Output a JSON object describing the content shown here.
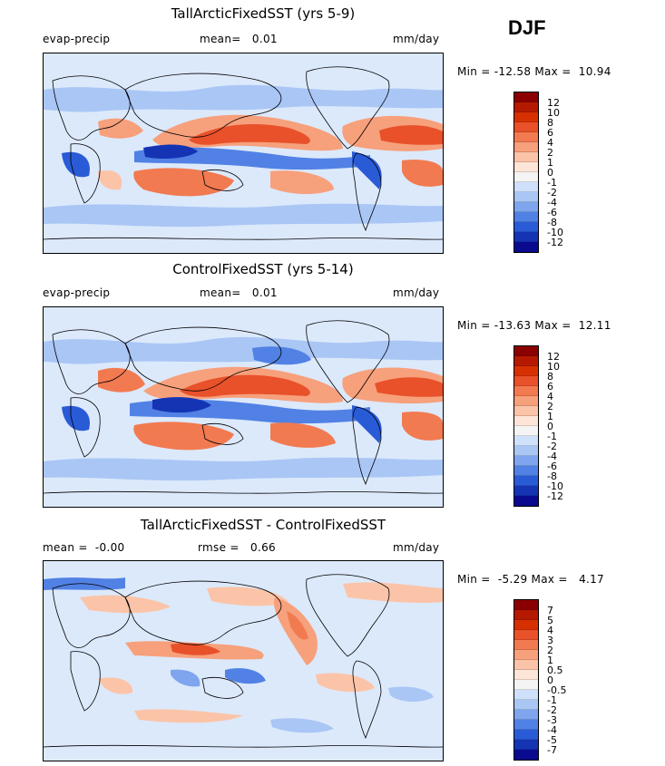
{
  "season": "DJF",
  "panels": [
    {
      "title": "TallArcticFixedSST (yrs 5-9)",
      "left_text": "evap-precip",
      "mid_text": "mean=   0.01",
      "right_text": "mm/day",
      "min_max": "Min = -12.58 Max =  10.94",
      "colorbar_labels": [
        "12",
        "10",
        "8",
        "6",
        "4",
        "2",
        "1",
        "0",
        "-1",
        "-2",
        "-4",
        "-6",
        "-8",
        "-10",
        "-12"
      ],
      "colorbar_colors": [
        "#8b0000",
        "#b51a00",
        "#d73000",
        "#e8512a",
        "#f27a50",
        "#f7a07c",
        "#fbc4a8",
        "#fde6d8",
        "#f4f4f4",
        "#cfe0fb",
        "#a9c6f5",
        "#7ea5ee",
        "#5181e4",
        "#2a5bd6",
        "#1434b4",
        "#0a0a8f"
      ]
    },
    {
      "title": "ControlFixedSST (yrs 5-14)",
      "left_text": "evap-precip",
      "mid_text": "mean=   0.01",
      "right_text": "mm/day",
      "min_max": "Min = -13.63 Max =  12.11",
      "colorbar_labels": [
        "12",
        "10",
        "8",
        "6",
        "4",
        "2",
        "1",
        "0",
        "-1",
        "-2",
        "-4",
        "-6",
        "-8",
        "-10",
        "-12"
      ],
      "colorbar_colors": [
        "#8b0000",
        "#b51a00",
        "#d73000",
        "#e8512a",
        "#f27a50",
        "#f7a07c",
        "#fbc4a8",
        "#fde6d8",
        "#f4f4f4",
        "#cfe0fb",
        "#a9c6f5",
        "#7ea5ee",
        "#5181e4",
        "#2a5bd6",
        "#1434b4",
        "#0a0a8f"
      ]
    },
    {
      "title": "TallArcticFixedSST - ControlFixedSST",
      "left_text": "mean =  -0.00",
      "mid_text": "rmse =   0.66",
      "right_text": "mm/day",
      "min_max": "Min =  -5.29 Max =   4.17",
      "colorbar_labels": [
        "7",
        "5",
        "4",
        "3",
        "2",
        "1",
        "0.5",
        "0",
        "-0.5",
        "-1",
        "-2",
        "-3",
        "-4",
        "-5",
        "-7"
      ],
      "colorbar_colors": [
        "#8b0000",
        "#b51a00",
        "#d73000",
        "#e8512a",
        "#f27a50",
        "#f7a07c",
        "#fbc4a8",
        "#fde6d8",
        "#f4f4f4",
        "#cfe0fb",
        "#a9c6f5",
        "#7ea5ee",
        "#5181e4",
        "#2a5bd6",
        "#1434b4",
        "#0a0a8f"
      ]
    }
  ],
  "chart_data": [
    {
      "type": "heatmap",
      "title": "TallArcticFixedSST (yrs 5-9)",
      "unit": "mm/day",
      "variable": "evap-precip",
      "mean": 0.01,
      "min": -12.58,
      "max": 10.94,
      "levels": [
        -12,
        -10,
        -8,
        -6,
        -4,
        -2,
        -1,
        0,
        1,
        2,
        4,
        6,
        8,
        10,
        12
      ]
    },
    {
      "type": "heatmap",
      "title": "ControlFixedSST (yrs 5-14)",
      "unit": "mm/day",
      "variable": "evap-precip",
      "mean": 0.01,
      "min": -13.63,
      "max": 12.11,
      "levels": [
        -12,
        -10,
        -8,
        -6,
        -4,
        -2,
        -1,
        0,
        1,
        2,
        4,
        6,
        8,
        10,
        12
      ]
    },
    {
      "type": "heatmap",
      "title": "TallArcticFixedSST - ControlFixedSST",
      "unit": "mm/day",
      "mean": -0.0,
      "rmse": 0.66,
      "min": -5.29,
      "max": 4.17,
      "levels": [
        -7,
        -5,
        -4,
        -3,
        -2,
        -1,
        -0.5,
        0,
        0.5,
        1,
        2,
        3,
        4,
        5,
        7
      ]
    }
  ]
}
